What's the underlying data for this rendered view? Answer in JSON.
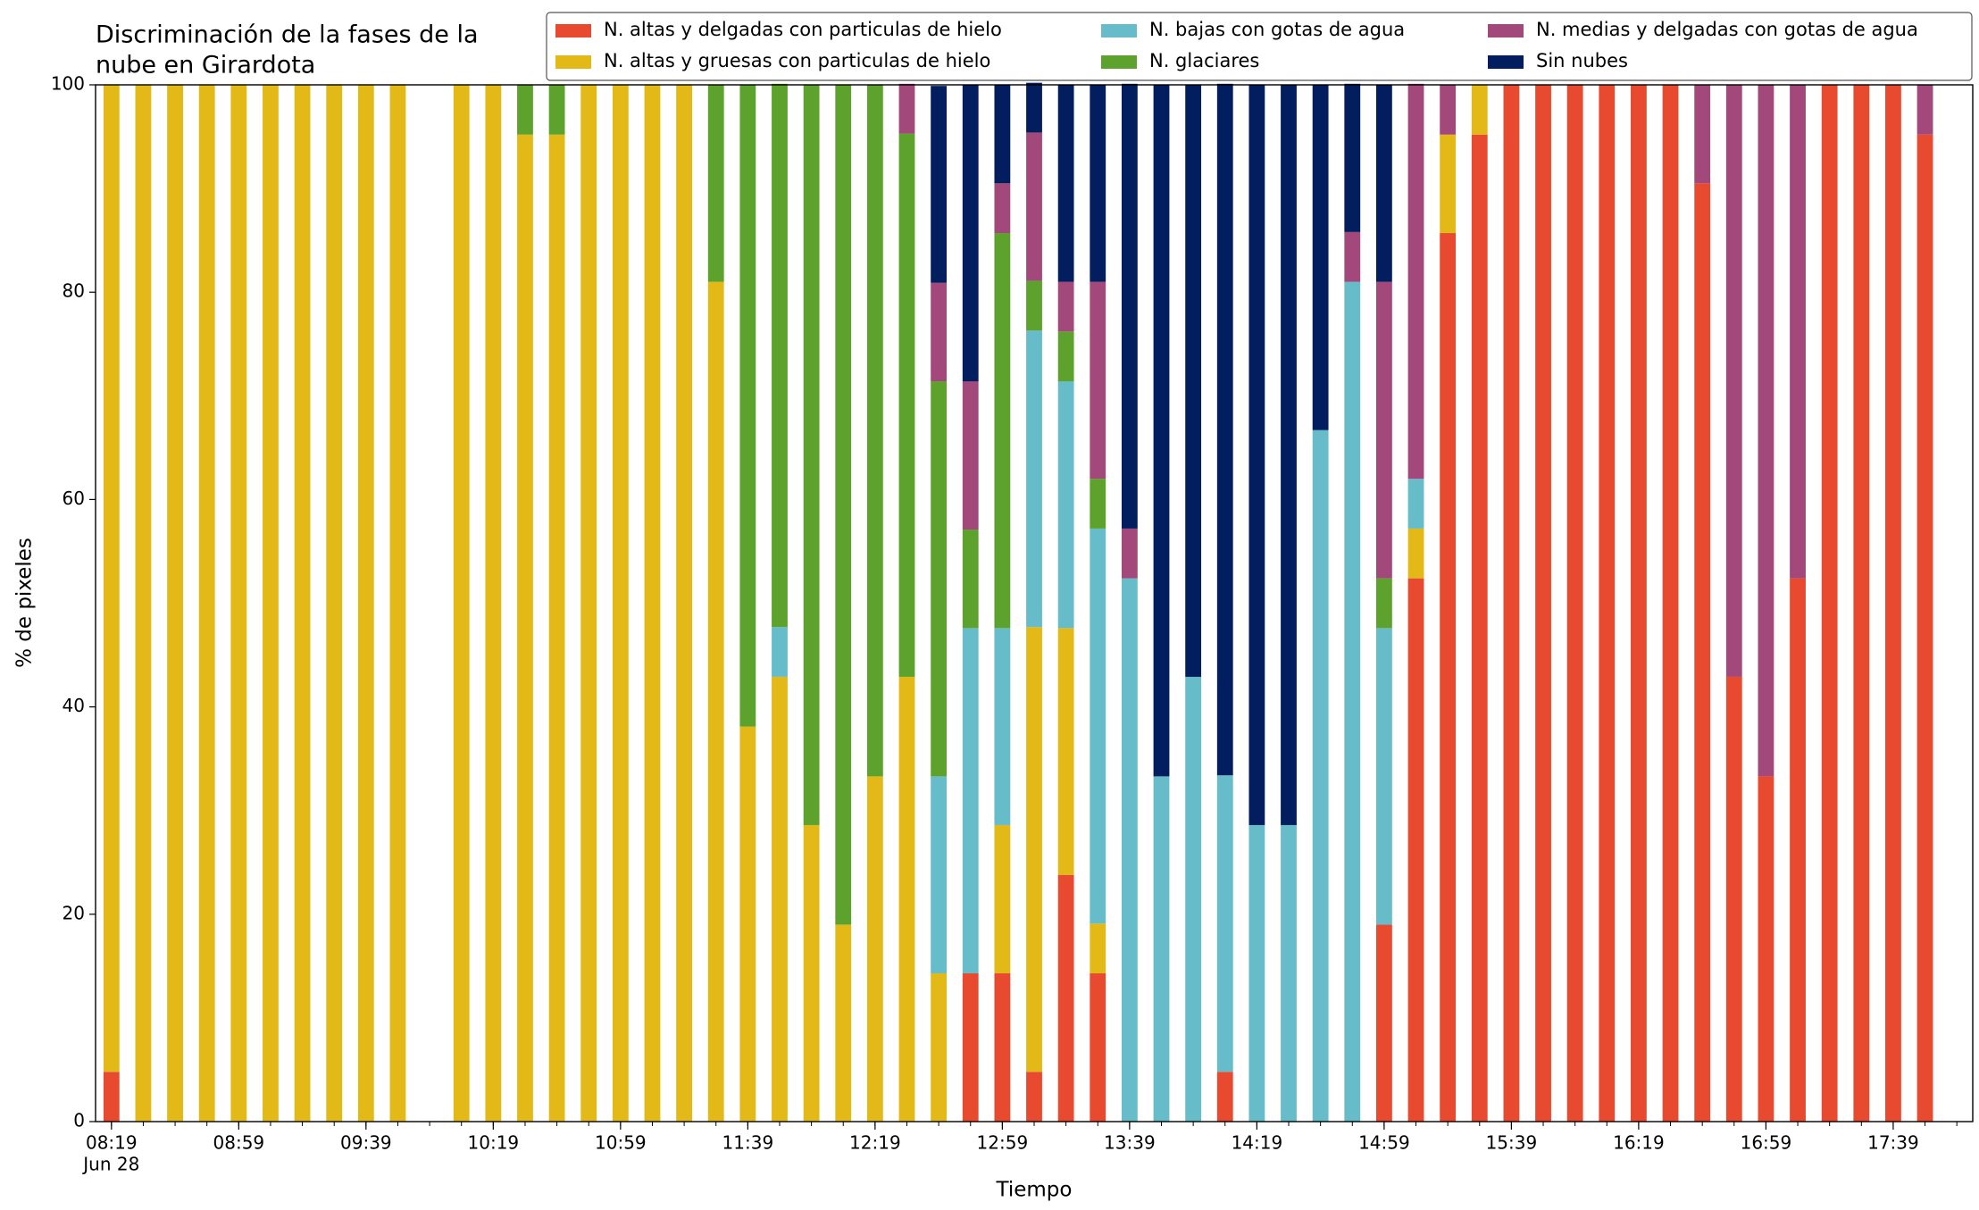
{
  "chart_data": {
    "type": "stacked_bar",
    "title": [
      "Discriminación de la fases de la",
      "nube en Girardota"
    ],
    "xlabel": "Tiempo",
    "ylabel": "% de pixeles",
    "x": [
      "08:19",
      "08:29",
      "08:39",
      "08:49",
      "08:59",
      "09:09",
      "09:19",
      "09:29",
      "09:39",
      "09:49",
      "10:09",
      "10:19",
      "10:29",
      "10:39",
      "10:49",
      "10:59",
      "11:09",
      "11:19",
      "11:29",
      "11:39",
      "11:49",
      "11:59",
      "12:09",
      "12:19",
      "12:29",
      "12:39",
      "12:49",
      "12:59",
      "13:09",
      "13:19",
      "13:29",
      "13:39",
      "13:49",
      "13:59",
      "14:09",
      "14:19",
      "14:29",
      "14:39",
      "14:49",
      "14:59",
      "15:09",
      "15:19",
      "15:29",
      "15:39",
      "15:49",
      "15:59",
      "16:09",
      "16:19",
      "16:29",
      "16:39",
      "16:49",
      "16:59",
      "17:09",
      "17:19",
      "17:29",
      "17:39",
      "17:49"
    ],
    "xlim": [
      "08:14",
      "18:04"
    ],
    "xticks": [
      "08:19",
      "08:59",
      "09:39",
      "10:19",
      "10:59",
      "11:39",
      "12:19",
      "12:59",
      "13:39",
      "14:19",
      "14:59",
      "15:39",
      "16:19",
      "16:59",
      "17:39"
    ],
    "xtick_date": "Jun 28",
    "ylim": [
      0,
      100
    ],
    "yticks": [
      0,
      20,
      40,
      60,
      80,
      100
    ],
    "legend_position": "top-right",
    "legend_columns": 3,
    "series": [
      {
        "name": "N. altas y delgadas con particulas de hielo",
        "color": "#e84a2f",
        "values": [
          4.8,
          0,
          0,
          0,
          0,
          0,
          0,
          0,
          0,
          0,
          0,
          0,
          0,
          0,
          0,
          0,
          0,
          0,
          0,
          0,
          0,
          0,
          0,
          0,
          0,
          0,
          14.3,
          14.3,
          4.8,
          23.8,
          14.3,
          0,
          0,
          0,
          4.8,
          0,
          0,
          0,
          0,
          19,
          52.4,
          85.7,
          95.2,
          100,
          100,
          100,
          100,
          100,
          100,
          90.5,
          42.9,
          33.3,
          52.4,
          100,
          100,
          100,
          95.2
        ]
      },
      {
        "name": "N. altas y gruesas con particulas de hielo",
        "color": "#e2b917",
        "values": [
          95.2,
          100,
          100,
          100,
          100,
          100,
          100,
          100,
          100,
          100,
          100,
          100,
          95.2,
          95.2,
          100,
          100,
          100,
          100,
          81,
          38.1,
          42.9,
          28.6,
          19,
          33.3,
          42.9,
          14.3,
          0,
          14.3,
          42.9,
          23.8,
          4.8,
          0,
          0,
          0,
          0,
          0,
          0,
          0,
          0,
          0,
          4.8,
          9.5,
          4.8,
          0,
          0,
          0,
          0,
          0,
          0,
          0,
          0,
          0,
          0,
          0,
          0,
          0,
          0
        ]
      },
      {
        "name": "N. bajas con gotas de agua",
        "color": "#66bcc8",
        "values": [
          0,
          0,
          0,
          0,
          0,
          0,
          0,
          0,
          0,
          0,
          0,
          0,
          0,
          0,
          0,
          0,
          0,
          0,
          0,
          0,
          4.8,
          0,
          0,
          0,
          0,
          19,
          33.3,
          19,
          28.6,
          23.8,
          38.1,
          52.4,
          33.3,
          42.9,
          28.6,
          28.6,
          28.6,
          66.7,
          81,
          28.6,
          4.8,
          0,
          0,
          0,
          0,
          0,
          0,
          0,
          0,
          0,
          0,
          0,
          0,
          0,
          0,
          0,
          0
        ]
      },
      {
        "name": "N. glaciares",
        "color": "#5da22c",
        "values": [
          0,
          0,
          0,
          0,
          0,
          0,
          0,
          0,
          0,
          0,
          0,
          0,
          4.8,
          4.8,
          0,
          0,
          0,
          0,
          19,
          61.9,
          52.4,
          71.4,
          81,
          66.7,
          52.4,
          38.1,
          9.5,
          38.1,
          4.8,
          4.8,
          4.8,
          0,
          0,
          0,
          0,
          0,
          0,
          0,
          0,
          4.8,
          0,
          0,
          0,
          0,
          0,
          0,
          0,
          0,
          0,
          0,
          0,
          0,
          0,
          0,
          0,
          0,
          0
        ]
      },
      {
        "name": "N. medias y delgadas con gotas de agua",
        "color": "#a2487a",
        "values": [
          0,
          0,
          0,
          0,
          0,
          0,
          0,
          0,
          0,
          0,
          0,
          0,
          0,
          0,
          0,
          0,
          0,
          0,
          0,
          0,
          0,
          0,
          0,
          0,
          4.8,
          9.5,
          14.3,
          4.8,
          14.3,
          4.8,
          19,
          4.8,
          0,
          0,
          0,
          0,
          0,
          0,
          4.8,
          28.6,
          38.1,
          4.8,
          0,
          0,
          0,
          0,
          0,
          0,
          0,
          9.5,
          57.1,
          66.7,
          47.6,
          0,
          0,
          0,
          4.8
        ]
      },
      {
        "name": "Sin nubes",
        "color": "#021e5f",
        "values": [
          0,
          0,
          0,
          0,
          0,
          0,
          0,
          0,
          0,
          0,
          0,
          0,
          0,
          0,
          0,
          0,
          0,
          0,
          0,
          0,
          0,
          0,
          0,
          0,
          0,
          19,
          28.6,
          9.5,
          4.8,
          19,
          19,
          42.9,
          66.7,
          57.1,
          66.7,
          71.4,
          71.4,
          33.3,
          14.3,
          19,
          0,
          0,
          0,
          0,
          0,
          0,
          0,
          0,
          0,
          0,
          0,
          0,
          0,
          0,
          0,
          0,
          0
        ]
      }
    ]
  }
}
